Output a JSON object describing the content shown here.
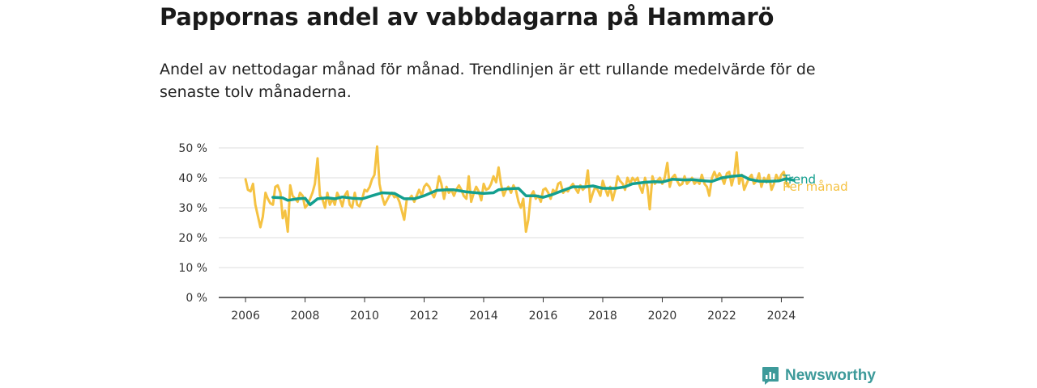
{
  "header": {
    "title": "Pappornas andel av vabbdagarna på Hammarö",
    "subtitle": "Andel av nettodagar månad för månad. Trendlinjen är ett rullande medelvärde för de senaste tolv månaderna."
  },
  "brand": {
    "name": "Newsworthy",
    "icon": "newsworthy-logo-icon",
    "color": "#3d9a9a"
  },
  "chart_data": {
    "type": "line",
    "xlabel": "",
    "ylabel": "",
    "xlim": [
      2005.1,
      2024.75
    ],
    "ylim": [
      0,
      50
    ],
    "grid": true,
    "x_ticks": [
      2006,
      2008,
      2010,
      2012,
      2014,
      2016,
      2018,
      2020,
      2022,
      2024
    ],
    "y_ticks": [
      {
        "value": 0,
        "label": "0 %"
      },
      {
        "value": 10,
        "label": "10 %"
      },
      {
        "value": 20,
        "label": "20 %"
      },
      {
        "value": 30,
        "label": "30 %"
      },
      {
        "value": 40,
        "label": "40 %"
      },
      {
        "value": 50,
        "label": "50 %"
      }
    ],
    "series": [
      {
        "name": "Per månad",
        "color": "#f5c242",
        "points": [
          [
            2006.0,
            39.5
          ],
          [
            2006.08,
            36
          ],
          [
            2006.17,
            35.5
          ],
          [
            2006.25,
            38
          ],
          [
            2006.33,
            31
          ],
          [
            2006.42,
            27
          ],
          [
            2006.5,
            23.5
          ],
          [
            2006.58,
            27
          ],
          [
            2006.67,
            35
          ],
          [
            2006.75,
            33
          ],
          [
            2006.83,
            31.5
          ],
          [
            2006.92,
            31
          ],
          [
            2007.0,
            37
          ],
          [
            2007.08,
            37.5
          ],
          [
            2007.17,
            35
          ],
          [
            2007.25,
            26.5
          ],
          [
            2007.33,
            29
          ],
          [
            2007.42,
            22
          ],
          [
            2007.5,
            37.5
          ],
          [
            2007.58,
            34
          ],
          [
            2007.67,
            33
          ],
          [
            2007.75,
            32
          ],
          [
            2007.83,
            35
          ],
          [
            2007.92,
            34
          ],
          [
            2008.0,
            30
          ],
          [
            2008.08,
            31
          ],
          [
            2008.17,
            33
          ],
          [
            2008.25,
            35
          ],
          [
            2008.33,
            38
          ],
          [
            2008.42,
            46.5
          ],
          [
            2008.5,
            34
          ],
          [
            2008.58,
            33
          ],
          [
            2008.67,
            30
          ],
          [
            2008.75,
            35
          ],
          [
            2008.83,
            31
          ],
          [
            2008.92,
            33
          ],
          [
            2009.0,
            31
          ],
          [
            2009.08,
            35
          ],
          [
            2009.17,
            33
          ],
          [
            2009.25,
            30.5
          ],
          [
            2009.33,
            34
          ],
          [
            2009.42,
            35.5
          ],
          [
            2009.5,
            31
          ],
          [
            2009.58,
            30
          ],
          [
            2009.67,
            35
          ],
          [
            2009.75,
            31
          ],
          [
            2009.83,
            30.5
          ],
          [
            2009.92,
            33
          ],
          [
            2010.0,
            36
          ],
          [
            2010.08,
            35.5
          ],
          [
            2010.17,
            37
          ],
          [
            2010.25,
            39.5
          ],
          [
            2010.33,
            41
          ],
          [
            2010.42,
            50.5
          ],
          [
            2010.5,
            38
          ],
          [
            2010.58,
            34
          ],
          [
            2010.67,
            31
          ],
          [
            2010.75,
            32.5
          ],
          [
            2010.83,
            34
          ],
          [
            2010.92,
            35
          ],
          [
            2011.0,
            33.5
          ],
          [
            2011.08,
            34
          ],
          [
            2011.17,
            32
          ],
          [
            2011.25,
            29
          ],
          [
            2011.33,
            26
          ],
          [
            2011.42,
            33
          ],
          [
            2011.5,
            33
          ],
          [
            2011.58,
            34
          ],
          [
            2011.67,
            32
          ],
          [
            2011.75,
            34
          ],
          [
            2011.83,
            36
          ],
          [
            2011.92,
            34
          ],
          [
            2012.0,
            37
          ],
          [
            2012.08,
            38
          ],
          [
            2012.17,
            37
          ],
          [
            2012.25,
            35
          ],
          [
            2012.33,
            33.5
          ],
          [
            2012.42,
            36
          ],
          [
            2012.5,
            40.5
          ],
          [
            2012.58,
            38
          ],
          [
            2012.67,
            33
          ],
          [
            2012.75,
            37
          ],
          [
            2012.83,
            35
          ],
          [
            2012.92,
            36
          ],
          [
            2013.0,
            34
          ],
          [
            2013.08,
            36
          ],
          [
            2013.17,
            37.5
          ],
          [
            2013.25,
            36
          ],
          [
            2013.33,
            34
          ],
          [
            2013.42,
            33
          ],
          [
            2013.5,
            40.5
          ],
          [
            2013.58,
            32
          ],
          [
            2013.67,
            35
          ],
          [
            2013.75,
            37
          ],
          [
            2013.83,
            35.5
          ],
          [
            2013.92,
            32.5
          ],
          [
            2014.0,
            38
          ],
          [
            2014.08,
            36
          ],
          [
            2014.17,
            36.5
          ],
          [
            2014.25,
            38
          ],
          [
            2014.33,
            40.5
          ],
          [
            2014.42,
            38.5
          ],
          [
            2014.5,
            43.5
          ],
          [
            2014.58,
            38
          ],
          [
            2014.67,
            34
          ],
          [
            2014.75,
            36
          ],
          [
            2014.83,
            37
          ],
          [
            2014.92,
            35
          ],
          [
            2015.0,
            37.5
          ],
          [
            2015.08,
            36
          ],
          [
            2015.17,
            32
          ],
          [
            2015.25,
            30
          ],
          [
            2015.33,
            33
          ],
          [
            2015.42,
            22
          ],
          [
            2015.5,
            26
          ],
          [
            2015.58,
            34
          ],
          [
            2015.67,
            35.5
          ],
          [
            2015.75,
            33
          ],
          [
            2015.83,
            34
          ],
          [
            2015.92,
            32
          ],
          [
            2016.0,
            36
          ],
          [
            2016.08,
            36.5
          ],
          [
            2016.17,
            35
          ],
          [
            2016.25,
            33
          ],
          [
            2016.33,
            36
          ],
          [
            2016.42,
            35
          ],
          [
            2016.5,
            38
          ],
          [
            2016.58,
            38.5
          ],
          [
            2016.67,
            35
          ],
          [
            2016.75,
            36
          ],
          [
            2016.83,
            35.5
          ],
          [
            2016.92,
            37
          ],
          [
            2017.0,
            38
          ],
          [
            2017.08,
            36.5
          ],
          [
            2017.17,
            35
          ],
          [
            2017.25,
            37.5
          ],
          [
            2017.33,
            36
          ],
          [
            2017.42,
            37
          ],
          [
            2017.5,
            42.5
          ],
          [
            2017.58,
            32
          ],
          [
            2017.67,
            35
          ],
          [
            2017.75,
            37
          ],
          [
            2017.83,
            36
          ],
          [
            2017.92,
            34
          ],
          [
            2018.0,
            39
          ],
          [
            2018.08,
            36.5
          ],
          [
            2018.17,
            34
          ],
          [
            2018.25,
            37
          ],
          [
            2018.33,
            32.5
          ],
          [
            2018.42,
            36
          ],
          [
            2018.5,
            40.5
          ],
          [
            2018.58,
            39
          ],
          [
            2018.67,
            38
          ],
          [
            2018.75,
            36
          ],
          [
            2018.83,
            40
          ],
          [
            2018.92,
            38
          ],
          [
            2019.0,
            40
          ],
          [
            2019.08,
            39
          ],
          [
            2019.17,
            40
          ],
          [
            2019.25,
            37
          ],
          [
            2019.33,
            35
          ],
          [
            2019.42,
            40
          ],
          [
            2019.5,
            37
          ],
          [
            2019.58,
            29.5
          ],
          [
            2019.67,
            40.5
          ],
          [
            2019.75,
            38
          ],
          [
            2019.83,
            39
          ],
          [
            2019.92,
            40
          ],
          [
            2020.0,
            38
          ],
          [
            2020.08,
            40
          ],
          [
            2020.17,
            45
          ],
          [
            2020.25,
            37
          ],
          [
            2020.33,
            40
          ],
          [
            2020.42,
            41
          ],
          [
            2020.5,
            39
          ],
          [
            2020.58,
            37.5
          ],
          [
            2020.67,
            38
          ],
          [
            2020.75,
            40.5
          ],
          [
            2020.83,
            38
          ],
          [
            2020.92,
            39
          ],
          [
            2021.0,
            40
          ],
          [
            2021.08,
            38
          ],
          [
            2021.17,
            39
          ],
          [
            2021.25,
            38
          ],
          [
            2021.33,
            41
          ],
          [
            2021.42,
            38
          ],
          [
            2021.5,
            37
          ],
          [
            2021.58,
            34
          ],
          [
            2021.67,
            40
          ],
          [
            2021.75,
            42
          ],
          [
            2021.83,
            40
          ],
          [
            2021.92,
            41.5
          ],
          [
            2022.0,
            40
          ],
          [
            2022.08,
            38
          ],
          [
            2022.17,
            41.5
          ],
          [
            2022.25,
            42
          ],
          [
            2022.33,
            37.5
          ],
          [
            2022.42,
            41
          ],
          [
            2022.5,
            48.5
          ],
          [
            2022.58,
            38
          ],
          [
            2022.67,
            41
          ],
          [
            2022.75,
            36
          ],
          [
            2022.83,
            38
          ],
          [
            2022.92,
            40
          ],
          [
            2023.0,
            41
          ],
          [
            2023.08,
            38
          ],
          [
            2023.17,
            39
          ],
          [
            2023.25,
            41.5
          ],
          [
            2023.33,
            37
          ],
          [
            2023.42,
            40
          ],
          [
            2023.5,
            38.5
          ],
          [
            2023.58,
            41
          ],
          [
            2023.67,
            36
          ],
          [
            2023.75,
            38
          ],
          [
            2023.83,
            41
          ],
          [
            2023.92,
            39
          ],
          [
            2024.0,
            41
          ],
          [
            2024.08,
            42
          ],
          [
            2024.17,
            38
          ],
          [
            2024.25,
            37
          ]
        ]
      },
      {
        "name": "Trend",
        "color": "#139f8f",
        "points": [
          [
            2006.92,
            33.5
          ],
          [
            2007.25,
            33.3
          ],
          [
            2007.42,
            32.5
          ],
          [
            2007.75,
            33
          ],
          [
            2008.0,
            33.2
          ],
          [
            2008.17,
            31
          ],
          [
            2008.42,
            33
          ],
          [
            2008.75,
            33.3
          ],
          [
            2009.0,
            33
          ],
          [
            2009.25,
            33.6
          ],
          [
            2009.58,
            33.2
          ],
          [
            2009.92,
            33
          ],
          [
            2010.25,
            34
          ],
          [
            2010.58,
            35
          ],
          [
            2011.0,
            34.8
          ],
          [
            2011.33,
            33
          ],
          [
            2011.67,
            33
          ],
          [
            2012.0,
            34
          ],
          [
            2012.42,
            35.8
          ],
          [
            2012.75,
            36
          ],
          [
            2013.0,
            36
          ],
          [
            2013.42,
            35.3
          ],
          [
            2013.75,
            35
          ],
          [
            2014.0,
            34.8
          ],
          [
            2014.33,
            35
          ],
          [
            2014.5,
            36
          ],
          [
            2014.75,
            36.3
          ],
          [
            2015.17,
            36.5
          ],
          [
            2015.42,
            34
          ],
          [
            2015.75,
            34
          ],
          [
            2016.0,
            33.5
          ],
          [
            2016.33,
            34.5
          ],
          [
            2016.67,
            35.8
          ],
          [
            2017.0,
            37
          ],
          [
            2017.42,
            37
          ],
          [
            2017.67,
            37.3
          ],
          [
            2018.0,
            36.5
          ],
          [
            2018.42,
            36.5
          ],
          [
            2018.75,
            37
          ],
          [
            2019.0,
            38
          ],
          [
            2019.42,
            38.5
          ],
          [
            2019.75,
            38.7
          ],
          [
            2020.0,
            38.6
          ],
          [
            2020.33,
            39.5
          ],
          [
            2020.75,
            39.3
          ],
          [
            2021.0,
            39.4
          ],
          [
            2021.42,
            39
          ],
          [
            2021.67,
            38.8
          ],
          [
            2022.0,
            40
          ],
          [
            2022.33,
            40.5
          ],
          [
            2022.67,
            40.8
          ],
          [
            2022.92,
            39.5
          ],
          [
            2023.25,
            38.9
          ],
          [
            2023.58,
            38.8
          ],
          [
            2023.92,
            39
          ],
          [
            2024.17,
            39.7
          ],
          [
            2024.42,
            39.2
          ]
        ]
      }
    ]
  }
}
